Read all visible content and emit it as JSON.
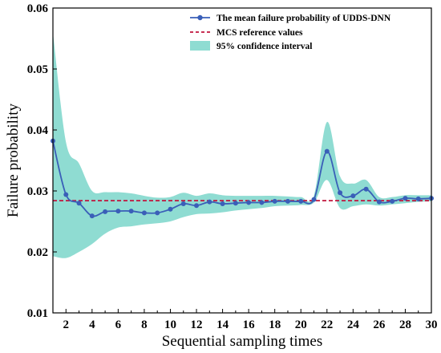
{
  "chart_data": {
    "type": "line",
    "xlabel": "Sequential sampling times",
    "ylabel": "Failure probability",
    "xlim": [
      1,
      30
    ],
    "ylim": [
      0.01,
      0.06
    ],
    "xticks": [
      2,
      4,
      6,
      8,
      10,
      12,
      14,
      16,
      18,
      20,
      22,
      24,
      26,
      28,
      30
    ],
    "yticks": [
      0.01,
      0.02,
      0.03,
      0.04,
      0.05,
      0.06
    ],
    "ytick_labels": [
      "0.01",
      "0.02",
      "0.03",
      "0.04",
      "0.05",
      "0.06"
    ],
    "grid": false,
    "legend_position": "top-right",
    "x": [
      1,
      2,
      3,
      4,
      5,
      6,
      7,
      8,
      9,
      10,
      11,
      12,
      13,
      14,
      15,
      16,
      17,
      18,
      19,
      20,
      21,
      22,
      23,
      24,
      25,
      26,
      27,
      28,
      29,
      30
    ],
    "series": [
      {
        "name": "The mean failure probability of UDDS-DNN",
        "color": "#3a5fb8",
        "values": [
          0.0382,
          0.0294,
          0.028,
          0.0259,
          0.0266,
          0.0267,
          0.0267,
          0.0264,
          0.0264,
          0.027,
          0.0279,
          0.0276,
          0.0282,
          0.0279,
          0.028,
          0.0281,
          0.0281,
          0.0283,
          0.0283,
          0.0283,
          0.0286,
          0.0365,
          0.0297,
          0.0292,
          0.0303,
          0.0282,
          0.0283,
          0.0288,
          0.0287,
          0.0288
        ]
      },
      {
        "name": "MCS reference values",
        "color": "#c0143c",
        "value": 0.0284
      }
    ],
    "band": {
      "name": "95% confidence interval",
      "color": "#8fdcd2",
      "lower": [
        0.0193,
        0.019,
        0.02,
        0.0213,
        0.023,
        0.024,
        0.0242,
        0.0245,
        0.0247,
        0.025,
        0.0257,
        0.0262,
        0.0263,
        0.0265,
        0.0268,
        0.027,
        0.0272,
        0.0275,
        0.0276,
        0.0277,
        0.0281,
        0.0318,
        0.0272,
        0.0275,
        0.0278,
        0.0276,
        0.0278,
        0.028,
        0.0282,
        0.0283
      ],
      "upper": [
        0.056,
        0.038,
        0.0345,
        0.03,
        0.0298,
        0.0298,
        0.0296,
        0.0292,
        0.0289,
        0.029,
        0.0297,
        0.0292,
        0.0296,
        0.0293,
        0.0292,
        0.0292,
        0.0292,
        0.0292,
        0.0291,
        0.029,
        0.0292,
        0.0413,
        0.0324,
        0.0312,
        0.0318,
        0.029,
        0.029,
        0.0293,
        0.0293,
        0.0293
      ]
    }
  }
}
